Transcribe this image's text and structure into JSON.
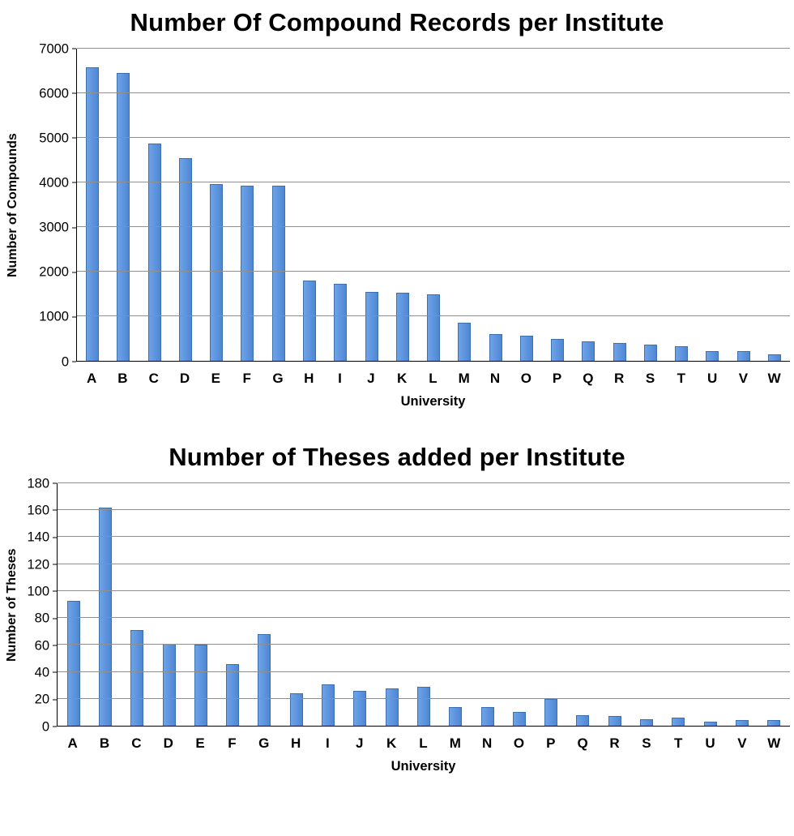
{
  "chart_data": [
    {
      "type": "bar",
      "title": "Number Of Compound Records per Institute",
      "xlabel": "University",
      "ylabel": "Number of Compounds",
      "ylim": [
        0,
        7000
      ],
      "ystep": 1000,
      "grid": true,
      "legend": "none",
      "bar_color": "#5d94de",
      "categories": [
        "A",
        "B",
        "C",
        "D",
        "E",
        "F",
        "G",
        "H",
        "I",
        "J",
        "K",
        "L",
        "M",
        "N",
        "O",
        "P",
        "Q",
        "R",
        "S",
        "T",
        "U",
        "V",
        "W"
      ],
      "values": [
        6580,
        6450,
        4870,
        4550,
        3960,
        3930,
        3930,
        1800,
        1730,
        1540,
        1520,
        1490,
        855,
        600,
        560,
        490,
        435,
        405,
        365,
        330,
        210,
        210,
        140
      ]
    },
    {
      "type": "bar",
      "title": "Number of Theses added per Institute",
      "xlabel": "University",
      "ylabel": "Number of Theses",
      "ylim": [
        0,
        180
      ],
      "ystep": 20,
      "grid": true,
      "legend": "none",
      "bar_color": "#5d94de",
      "categories": [
        "A",
        "B",
        "C",
        "D",
        "E",
        "F",
        "G",
        "H",
        "I",
        "J",
        "K",
        "L",
        "M",
        "N",
        "O",
        "P",
        "Q",
        "R",
        "S",
        "T",
        "U",
        "V",
        "W"
      ],
      "values": [
        93,
        162,
        71,
        61,
        60,
        46,
        68,
        24,
        31,
        26,
        28,
        29,
        14,
        14,
        10,
        20,
        8,
        7,
        5,
        6,
        3,
        4,
        4
      ]
    }
  ]
}
